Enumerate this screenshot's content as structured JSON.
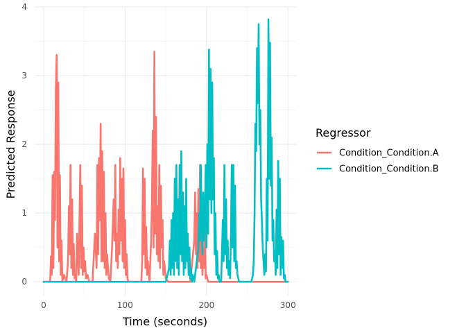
{
  "chart_data": {
    "type": "line",
    "title": "",
    "xlabel": "Time (seconds)",
    "ylabel": "Predicted Response",
    "xlim": [
      -11,
      310
    ],
    "ylim": [
      -0.2,
      4.0
    ],
    "xticks": [
      0,
      100,
      200,
      300
    ],
    "yticks": [
      0,
      1,
      2,
      3,
      4
    ],
    "grid": true,
    "legend": {
      "title": "Regressor",
      "placement": "right"
    },
    "series": [
      {
        "name": "Condition_Condition.A",
        "color": "#F8766D",
        "x": [
          0,
          8,
          9,
          10,
          11,
          12,
          13,
          14,
          15,
          16,
          17,
          18,
          19,
          20,
          21,
          22,
          23,
          25,
          28,
          30,
          31,
          32,
          33,
          34,
          35,
          36,
          37,
          38,
          39,
          40,
          41,
          43,
          45,
          46,
          47,
          48,
          49,
          50,
          51,
          52,
          54,
          56,
          60,
          63,
          65,
          66,
          67,
          68,
          69,
          70,
          71,
          72,
          73,
          74,
          75,
          76,
          77,
          78,
          80,
          82,
          84,
          86,
          87,
          88,
          89,
          90,
          91,
          92,
          93,
          94,
          95,
          96,
          97,
          98,
          99,
          100,
          101,
          102,
          103,
          104,
          106,
          110,
          115,
          120,
          121,
          122,
          123,
          124,
          125,
          126,
          127,
          128,
          130,
          132,
          133,
          134,
          135,
          136,
          137,
          138,
          139,
          140,
          141,
          142,
          143,
          144,
          145,
          146,
          147,
          148,
          150,
          153,
          156,
          160,
          170,
          180,
          185,
          186,
          187,
          188,
          189,
          190,
          191,
          192,
          193,
          194,
          195,
          196,
          197,
          198,
          199,
          200,
          202,
          205,
          210,
          220,
          300
        ],
        "values": [
          0,
          0,
          0.37,
          0.1,
          1.55,
          0.2,
          1.6,
          0.9,
          2.8,
          3.3,
          0.5,
          2.9,
          0.3,
          1.55,
          0.1,
          0.6,
          0.02,
          0.1,
          0,
          0.3,
          1.1,
          0.4,
          1.7,
          0.2,
          1.2,
          0.1,
          0.55,
          0.05,
          0.1,
          0,
          0.7,
          0.1,
          1.7,
          0.2,
          1.4,
          0.1,
          0.5,
          0.15,
          0.3,
          0.05,
          0.1,
          0,
          0,
          0.7,
          0.2,
          1.7,
          0.4,
          1.8,
          0.9,
          2.3,
          0.3,
          1.9,
          0.3,
          1.6,
          0.2,
          1.0,
          0.1,
          0.4,
          0.05,
          0,
          0.5,
          1.2,
          0.6,
          1.7,
          0.3,
          0.7,
          0.2,
          1.05,
          0.4,
          1.8,
          0.6,
          1.5,
          0.3,
          1.65,
          0.2,
          0.9,
          0.1,
          0.4,
          0.05,
          0,
          0,
          0,
          0,
          0,
          0.3,
          1.65,
          0.4,
          1.5,
          0.2,
          0.8,
          0.1,
          0.3,
          0,
          0.6,
          1.2,
          2.2,
          0.5,
          3.35,
          0.7,
          2.4,
          0.4,
          1.1,
          0.3,
          1.7,
          0.2,
          1.4,
          0.5,
          0.9,
          0.1,
          0.3,
          0.05,
          0,
          0,
          0,
          0,
          0,
          0.6,
          1.3,
          0.4,
          1.0,
          0.2,
          1.35,
          0.3,
          1.7,
          0.2,
          1.2,
          0.1,
          0.5,
          0.2,
          0.8,
          0.05,
          0.1,
          0,
          0,
          0,
          0,
          0
        ]
      },
      {
        "name": "Condition_Condition.B",
        "color": "#00BFC4",
        "x": [
          0,
          150,
          152,
          154,
          155,
          156,
          157,
          158,
          159,
          160,
          161,
          162,
          163,
          164,
          165,
          166,
          167,
          168,
          169,
          170,
          171,
          172,
          173,
          174,
          175,
          176,
          177,
          178,
          179,
          180,
          181,
          182,
          183,
          185,
          188,
          190,
          191,
          192,
          193,
          194,
          195,
          196,
          197,
          198,
          199,
          200,
          201,
          202,
          203,
          204,
          205,
          206,
          207,
          208,
          209,
          210,
          211,
          212,
          213,
          214,
          215,
          216,
          218,
          220,
          221,
          222,
          223,
          224,
          225,
          226,
          227,
          228,
          229,
          230,
          231,
          232,
          233,
          234,
          235,
          236,
          237,
          238,
          239,
          240,
          242,
          245,
          250,
          255,
          257,
          258,
          259,
          260,
          261,
          262,
          263,
          264,
          265,
          266,
          267,
          268,
          269,
          270,
          271,
          272,
          273,
          274,
          275,
          276,
          277,
          278,
          279,
          280,
          281,
          282,
          283,
          284,
          285,
          286,
          287,
          288,
          289,
          290,
          291,
          292,
          293,
          294,
          295,
          296,
          297,
          298,
          300
        ],
        "values": [
          0,
          0,
          0.1,
          0.2,
          0.6,
          0.1,
          0.9,
          0.2,
          1.0,
          0.1,
          1.5,
          0.3,
          1.7,
          0.2,
          1.2,
          0.1,
          1.7,
          0.4,
          1.9,
          0.3,
          1.3,
          0.1,
          1.1,
          0.2,
          1.5,
          0.3,
          0.7,
          0.1,
          0.5,
          0.05,
          0.2,
          0,
          0.1,
          0,
          0.3,
          0.5,
          1.0,
          0.6,
          1.7,
          1.0,
          0.4,
          1.3,
          0.6,
          1.0,
          1.7,
          0.5,
          2.0,
          0.7,
          3.38,
          1.2,
          3.1,
          1.0,
          2.9,
          1.2,
          1.8,
          0.4,
          1.0,
          0.1,
          0.45,
          0.05,
          0.1,
          0,
          0,
          0.9,
          0.3,
          1.7,
          0.4,
          1.2,
          0.2,
          0.6,
          0.1,
          0.3,
          0.05,
          0.7,
          1.7,
          0.5,
          1.7,
          0.3,
          1.4,
          0.2,
          0.3,
          0.1,
          0.05,
          0,
          0,
          0,
          0,
          0,
          0.1,
          0.3,
          1.0,
          2.3,
          1.9,
          3.4,
          2.6,
          3.75,
          2.0,
          2.5,
          1.2,
          0.9,
          0.5,
          0.3,
          0.1,
          0.4,
          0.15,
          1.5,
          0.6,
          3.82,
          1.5,
          3.48,
          1.4,
          2.1,
          0.6,
          0.9,
          0.3,
          0.45,
          0.1,
          1.05,
          0.2,
          1.76,
          0.4,
          1.5,
          0.1,
          0.65,
          0.2,
          0.6,
          0.05,
          0.1,
          0,
          0,
          0
        ]
      }
    ]
  }
}
